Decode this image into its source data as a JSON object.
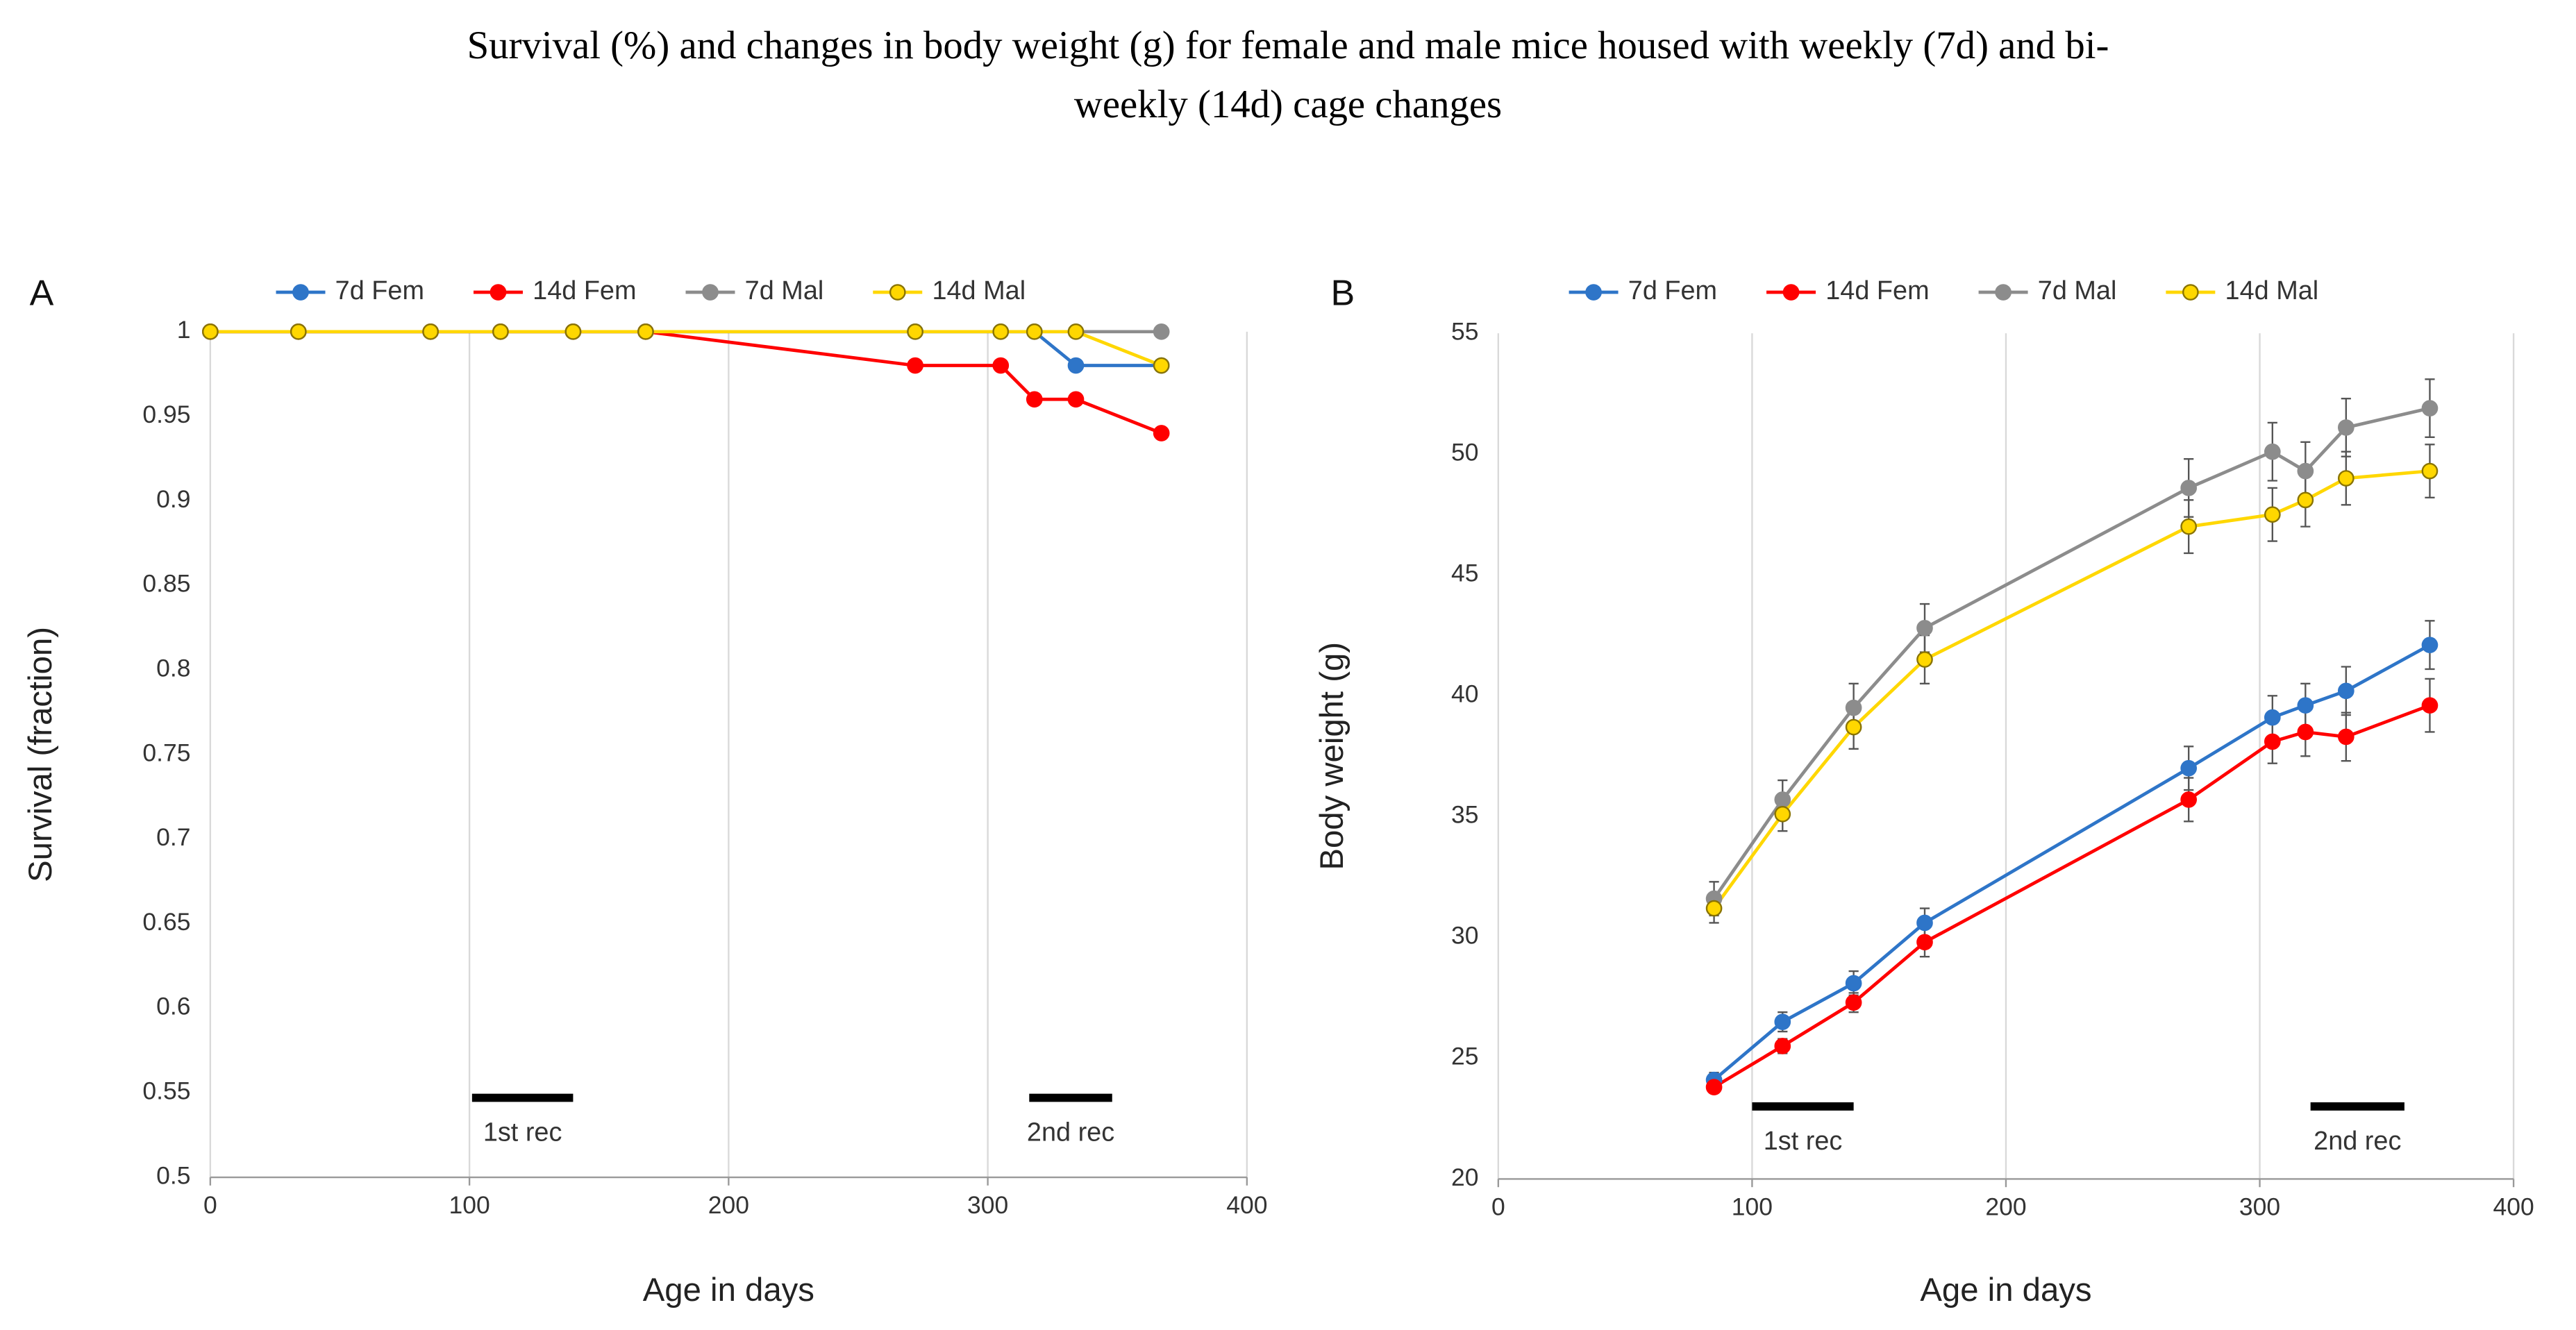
{
  "title_lines": [
    "Survival (%) and changes in body weight (g) for female and male mice housed with weekly (7d) and bi-",
    "weekly (14d) cage changes"
  ],
  "chart_data": [
    {
      "type": "line",
      "label": "A",
      "xlabel": "Age in days",
      "ylabel": "Survival (fraction)",
      "x": [
        0,
        34,
        85,
        112,
        140,
        168,
        272,
        305,
        318,
        334,
        367
      ],
      "series": [
        {
          "name": "7d Fem",
          "color": "#2e75c8",
          "marker_edge": "#2e75c8",
          "values": [
            1,
            1,
            1,
            1,
            1,
            1,
            1,
            1,
            1,
            0.98,
            0.98
          ]
        },
        {
          "name": "14d Fem",
          "color": "#ff0000",
          "marker_edge": "#ff0000",
          "values": [
            1,
            1,
            1,
            1,
            1,
            1,
            0.98,
            0.98,
            0.96,
            0.96,
            0.94
          ]
        },
        {
          "name": "7d Mal",
          "color": "#8c8c8c",
          "marker_edge": "#8c8c8c",
          "values": [
            1,
            1,
            1,
            1,
            1,
            1,
            1,
            1,
            1,
            1,
            1
          ]
        },
        {
          "name": "14d Mal",
          "color": "#ffd700",
          "marker_edge": "#8a7400",
          "values": [
            1,
            1,
            1,
            1,
            1,
            1,
            1,
            1,
            1,
            1,
            0.98
          ]
        }
      ],
      "xlim": [
        0,
        400
      ],
      "xticks": [
        0,
        100,
        200,
        300,
        400
      ],
      "ylim": [
        0.5,
        1
      ],
      "yticks": [
        0.5,
        0.55,
        0.6,
        0.65,
        0.7,
        0.75,
        0.8,
        0.85,
        0.9,
        0.95,
        1
      ],
      "grid": "x",
      "legend": "top",
      "annotations": [
        {
          "text": "1st rec",
          "x_start": 101,
          "x_end": 140,
          "y": 0.547
        },
        {
          "text": "2nd rec",
          "x_start": 316,
          "x_end": 348,
          "y": 0.547
        }
      ]
    },
    {
      "type": "line",
      "label": "B",
      "xlabel": "Age in days",
      "ylabel": "Body weight (g)",
      "x": [
        85,
        112,
        140,
        168,
        272,
        305,
        318,
        334,
        367
      ],
      "series": [
        {
          "name": "7d Fem",
          "color": "#2e75c8",
          "marker_edge": "#2e75c8",
          "values": [
            24.1,
            26.5,
            28.1,
            30.6,
            37.0,
            39.1,
            39.6,
            40.2,
            42.1
          ],
          "errors": [
            0.3,
            0.4,
            0.5,
            0.6,
            0.9,
            0.9,
            0.9,
            1.0,
            1.0
          ]
        },
        {
          "name": "14d Fem",
          "color": "#ff0000",
          "marker_edge": "#ff0000",
          "values": [
            23.8,
            25.5,
            27.3,
            29.8,
            35.7,
            38.1,
            38.5,
            38.3,
            39.6
          ],
          "errors": [
            0.2,
            0.3,
            0.4,
            0.6,
            0.9,
            0.9,
            1.0,
            1.0,
            1.1
          ]
        },
        {
          "name": "7d Mal",
          "color": "#8c8c8c",
          "marker_edge": "#8c8c8c",
          "values": [
            31.6,
            35.7,
            39.5,
            42.8,
            48.6,
            50.1,
            49.3,
            51.1,
            51.9
          ],
          "errors": [
            0.7,
            0.8,
            1.0,
            1.0,
            1.2,
            1.2,
            1.2,
            1.2,
            1.2
          ]
        },
        {
          "name": "14d Mal",
          "color": "#ffd700",
          "marker_edge": "#8a7400",
          "values": [
            31.2,
            35.1,
            38.7,
            41.5,
            47.0,
            47.5,
            48.1,
            49.0,
            49.3
          ],
          "errors": [
            0.6,
            0.7,
            0.9,
            1.0,
            1.1,
            1.1,
            1.1,
            1.1,
            1.1
          ]
        }
      ],
      "xlim": [
        0,
        400
      ],
      "xticks": [
        0,
        100,
        200,
        300,
        400
      ],
      "ylim": [
        20,
        55
      ],
      "yticks": [
        20,
        25,
        30,
        35,
        40,
        45,
        50,
        55
      ],
      "grid": "x",
      "legend": "top",
      "annotations": [
        {
          "text": "1st rec",
          "x_start": 100,
          "x_end": 140,
          "y": 23.0
        },
        {
          "text": "2nd rec",
          "x_start": 320,
          "x_end": 357,
          "y": 23.0
        }
      ]
    }
  ]
}
